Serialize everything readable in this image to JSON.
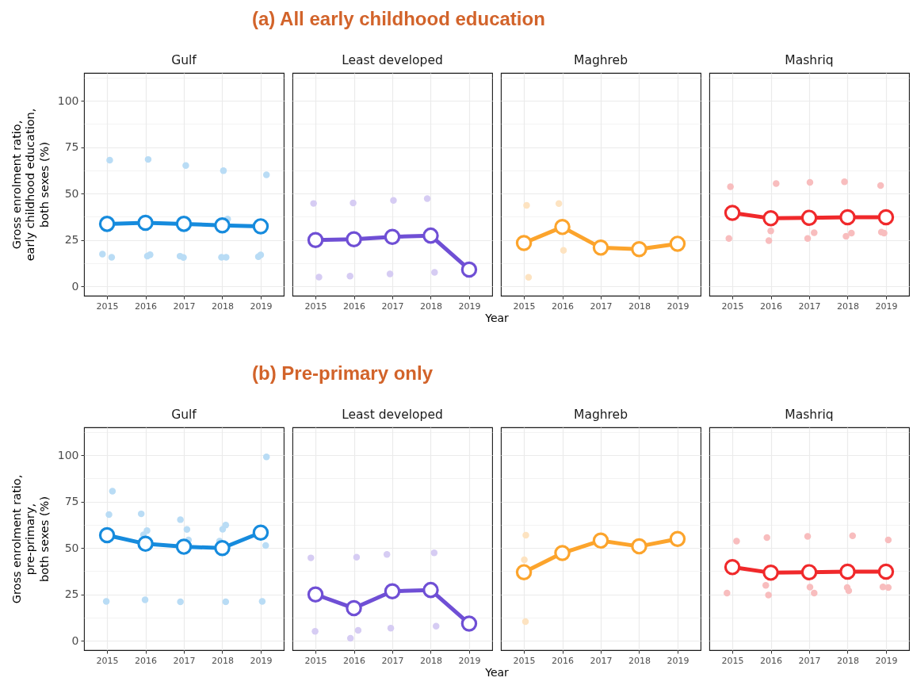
{
  "chart_data": [
    {
      "type": "line",
      "title": "Gulf",
      "annotations": [
        "(a) All early childhood education"
      ],
      "ylabel": "Gross enrolment ratio,\nearly childhood education,\nboth sexes (%)",
      "xlim": [
        2014.4,
        2019.6
      ],
      "xticks": [
        2015,
        2016,
        2017,
        2018,
        2019
      ],
      "ylim": [
        -5,
        115
      ],
      "yticks": [
        0,
        {
          "value": 12.5,
          "label": null
        },
        25,
        {
          "value": 37.5,
          "label": null
        },
        50,
        {
          "value": 62.5,
          "label": null
        },
        75,
        {
          "value": 87.5,
          "label": null
        },
        100,
        {
          "value": 112.5,
          "label": null
        }
      ],
      "grid": true,
      "marker": "circle",
      "series": [
        {
          "type": "scatter",
          "color": "#b9dcf5",
          "x": [
            2015.07,
            2014.88,
            2015.12,
            2016.07,
            2016.05,
            2016.12,
            2017.05,
            2016.9,
            2016.99,
            2018.03,
            2017.98,
            2018.1,
            2018.14,
            2019.15,
            2018.94,
            2019.0
          ],
          "values": [
            68.0,
            17.4,
            15.7,
            68.4,
            16.4,
            17.1,
            65.1,
            16.3,
            15.6,
            62.4,
            15.7,
            15.7,
            36.3,
            60.1,
            16.0,
            17.0
          ]
        },
        {
          "color": "#168bdd",
          "x": [
            2015,
            2016,
            2017,
            2018,
            2019
          ],
          "values": [
            33.7,
            34.3,
            33.7,
            32.9,
            32.4
          ]
        }
      ]
    },
    {
      "type": "line",
      "title": "Least developed",
      "xlabel": "Year",
      "tick_labels": "x",
      "xlim": [
        2014.4,
        2019.6
      ],
      "xticks": [
        2015,
        2016,
        2017,
        2018,
        2019
      ],
      "ylim": [
        -5,
        115
      ],
      "yticks": [
        0,
        {
          "value": 12.5,
          "label": null
        },
        25,
        {
          "value": 37.5,
          "label": null
        },
        50,
        {
          "value": 62.5,
          "label": null
        },
        75,
        {
          "value": 87.5,
          "label": null
        },
        100,
        {
          "value": 112.5,
          "label": null
        }
      ],
      "grid": true,
      "marker": "circle",
      "series": [
        {
          "type": "scatter",
          "color": "#d6ccf3",
          "x": [
            2014.95,
            2015.09,
            2015.98,
            2015.9,
            2017.03,
            2016.94,
            2017.91,
            2018.1
          ],
          "values": [
            44.7,
            5.0,
            45.0,
            5.6,
            46.4,
            6.7,
            47.3,
            7.6
          ]
        },
        {
          "color": "#6f4fd5",
          "x": [
            2015,
            2016,
            2017,
            2018,
            2019
          ],
          "values": [
            25.0,
            25.4,
            26.7,
            27.4,
            9.1
          ]
        }
      ]
    },
    {
      "type": "line",
      "title": "Maghreb",
      "tick_labels": "x",
      "xlim": [
        2014.4,
        2019.6
      ],
      "xticks": [
        2015,
        2016,
        2017,
        2018,
        2019
      ],
      "ylim": [
        -5,
        115
      ],
      "yticks": [
        0,
        {
          "value": 12.5,
          "label": null
        },
        25,
        {
          "value": 37.5,
          "label": null
        },
        50,
        {
          "value": 62.5,
          "label": null
        },
        75,
        {
          "value": 87.5,
          "label": null
        },
        100,
        {
          "value": 112.5,
          "label": null
        }
      ],
      "grid": true,
      "marker": "circle",
      "series": [
        {
          "type": "scatter",
          "color": "#fde3c1",
          "x": [
            2015.07,
            2015.12,
            2015.91,
            2016.03
          ],
          "values": [
            43.7,
            4.9,
            44.6,
            19.4
          ]
        },
        {
          "color": "#fca42c",
          "x": [
            2015,
            2016,
            2017,
            2018,
            2019
          ],
          "values": [
            23.4,
            32.0,
            20.9,
            20.1,
            23.0
          ]
        }
      ]
    },
    {
      "type": "line",
      "title": "Mashriq",
      "tick_labels": "x",
      "xlim": [
        2014.4,
        2019.6
      ],
      "xticks": [
        2015,
        2016,
        2017,
        2018,
        2019
      ],
      "ylim": [
        -5,
        115
      ],
      "yticks": [
        0,
        {
          "value": 12.5,
          "label": null
        },
        25,
        {
          "value": 37.5,
          "label": null
        },
        50,
        {
          "value": 62.5,
          "label": null
        },
        75,
        {
          "value": 87.5,
          "label": null
        },
        100,
        {
          "value": 112.5,
          "label": null
        }
      ],
      "grid": true,
      "marker": "circle",
      "series": [
        {
          "type": "scatter",
          "color": "#f8bdbe",
          "x": [
            2014.95,
            2014.91,
            2016.14,
            2016.0,
            2015.95,
            2017.02,
            2017.13,
            2016.96,
            2017.92,
            2018.1,
            2017.96,
            2018.86,
            2018.88,
            2018.95
          ],
          "values": [
            53.7,
            25.9,
            55.4,
            29.9,
            24.7,
            56.1,
            28.9,
            25.9,
            56.4,
            28.7,
            27.0,
            54.4,
            29.3,
            28.7
          ]
        },
        {
          "color": "#f0292b",
          "x": [
            2015,
            2016,
            2017,
            2018,
            2019
          ],
          "values": [
            39.6,
            36.7,
            37.0,
            37.3,
            37.3
          ]
        }
      ]
    },
    {
      "type": "line",
      "title": "Gulf",
      "annotations": [
        "(b) Pre-primary only"
      ],
      "ylabel": "Gross enrolment ratio,\npre-primary,\nboth sexes (%)",
      "xlim": [
        2014.4,
        2019.6
      ],
      "xticks": [
        2015,
        2016,
        2017,
        2018,
        2019
      ],
      "ylim": [
        -5,
        115
      ],
      "yticks": [
        0,
        {
          "value": 12.5,
          "label": null
        },
        25,
        {
          "value": 37.5,
          "label": null
        },
        50,
        {
          "value": 62.5,
          "label": null
        },
        75,
        {
          "value": 87.5,
          "label": null
        },
        100,
        {
          "value": 112.5,
          "label": null
        }
      ],
      "grid": true,
      "marker": "circle",
      "series": [
        {
          "type": "scatter",
          "color": "#b9dcf5",
          "x": [
            2015.14,
            2015.05,
            2014.98,
            2015.89,
            2016.04,
            2015.95,
            2015.99,
            2016.91,
            2017.08,
            2017.12,
            2016.91,
            2018.09,
            2018.01,
            2017.93,
            2018.09,
            2019.15,
            2019.13,
            2019.04
          ],
          "values": [
            80.6,
            68.0,
            21.3,
            68.4,
            59.4,
            57.1,
            22.1,
            65.3,
            60.0,
            54.4,
            21.0,
            62.4,
            60.1,
            53.7,
            21.1,
            99.1,
            51.4,
            21.3
          ]
        },
        {
          "color": "#168bdd",
          "x": [
            2015,
            2016,
            2017,
            2018,
            2019
          ],
          "values": [
            56.9,
            52.3,
            50.7,
            50.0,
            58.3
          ]
        }
      ]
    },
    {
      "type": "line",
      "title": "Least developed",
      "xlabel": "Year",
      "tick_labels": "x",
      "xlim": [
        2014.4,
        2019.6
      ],
      "xticks": [
        2015,
        2016,
        2017,
        2018,
        2019
      ],
      "ylim": [
        -5,
        115
      ],
      "yticks": [
        0,
        {
          "value": 12.5,
          "label": null
        },
        25,
        {
          "value": 37.5,
          "label": null
        },
        50,
        {
          "value": 62.5,
          "label": null
        },
        75,
        {
          "value": 87.5,
          "label": null
        },
        100,
        {
          "value": 112.5,
          "label": null
        }
      ],
      "grid": true,
      "marker": "circle",
      "series": [
        {
          "type": "scatter",
          "color": "#d6ccf3",
          "x": [
            2014.88,
            2014.99,
            2016.07,
            2016.11,
            2015.91,
            2016.86,
            2016.96,
            2018.09,
            2018.14
          ],
          "values": [
            44.7,
            5.1,
            45.1,
            5.7,
            1.4,
            46.6,
            6.9,
            47.4,
            7.9
          ]
        },
        {
          "color": "#6f4fd5",
          "x": [
            2015,
            2016,
            2017,
            2018,
            2019
          ],
          "values": [
            25.0,
            17.6,
            26.7,
            27.4,
            9.3
          ]
        }
      ]
    },
    {
      "type": "line",
      "title": "Maghreb",
      "tick_labels": "x",
      "xlim": [
        2014.4,
        2019.6
      ],
      "xticks": [
        2015,
        2016,
        2017,
        2018,
        2019
      ],
      "ylim": [
        -5,
        115
      ],
      "yticks": [
        0,
        {
          "value": 12.5,
          "label": null
        },
        25,
        {
          "value": 37.5,
          "label": null
        },
        50,
        {
          "value": 62.5,
          "label": null
        },
        75,
        {
          "value": 87.5,
          "label": null
        },
        100,
        {
          "value": 112.5,
          "label": null
        }
      ],
      "grid": true,
      "marker": "circle",
      "series": [
        {
          "type": "scatter",
          "color": "#fde3c1",
          "x": [
            2015.05,
            2015.01,
            2015.04
          ],
          "values": [
            56.9,
            43.7,
            10.4
          ]
        },
        {
          "color": "#fca42c",
          "x": [
            2015,
            2016,
            2017,
            2018,
            2019
          ],
          "values": [
            37.0,
            47.3,
            54.0,
            50.9,
            54.9
          ]
        }
      ]
    },
    {
      "type": "line",
      "title": "Mashriq",
      "tick_labels": "x",
      "xlim": [
        2014.4,
        2019.6
      ],
      "xticks": [
        2015,
        2016,
        2017,
        2018,
        2019
      ],
      "ylim": [
        -5,
        115
      ],
      "yticks": [
        0,
        {
          "value": 12.5,
          "label": null
        },
        25,
        {
          "value": 37.5,
          "label": null
        },
        50,
        {
          "value": 62.5,
          "label": null
        },
        75,
        {
          "value": 87.5,
          "label": null
        },
        100,
        {
          "value": 112.5,
          "label": null
        }
      ],
      "grid": true,
      "marker": "circle",
      "series": [
        {
          "type": "scatter",
          "color": "#f8bdbe",
          "x": [
            2015.11,
            2014.86,
            2015.9,
            2015.87,
            2015.94,
            2016.96,
            2017.02,
            2017.13,
            2018.13,
            2017.99,
            2018.03,
            2019.06,
            2018.92,
            2019.06
          ],
          "values": [
            53.7,
            25.7,
            55.6,
            29.9,
            24.7,
            56.3,
            28.9,
            25.7,
            56.6,
            28.7,
            27.0,
            54.4,
            29.1,
            28.7
          ]
        },
        {
          "color": "#f0292b",
          "x": [
            2015,
            2016,
            2017,
            2018,
            2019
          ],
          "values": [
            39.7,
            36.7,
            37.0,
            37.3,
            37.3
          ]
        }
      ]
    }
  ]
}
